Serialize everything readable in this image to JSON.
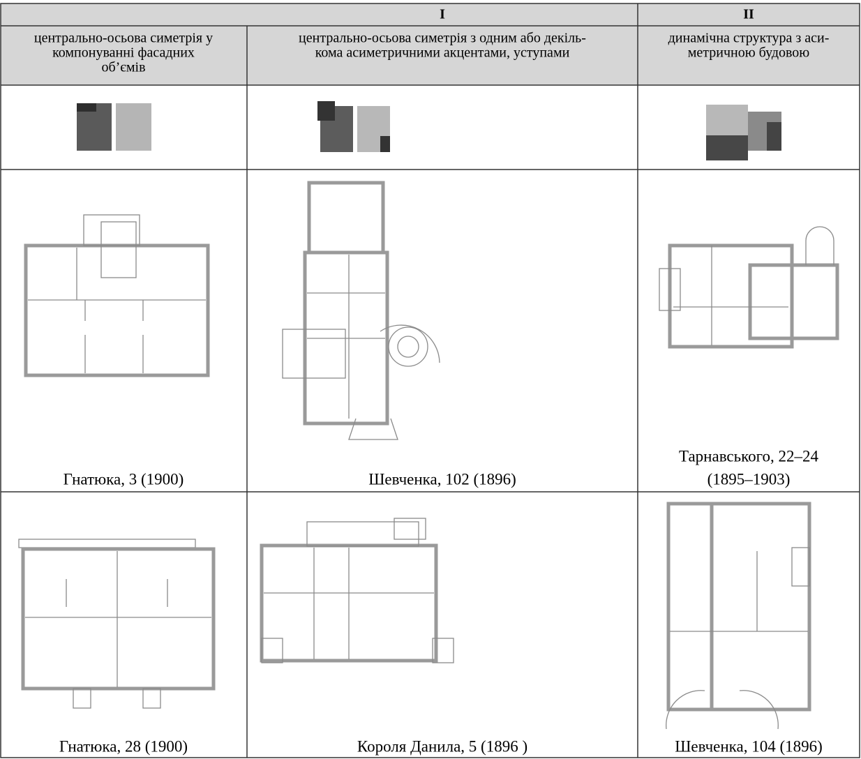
{
  "header": {
    "groups": [
      "I",
      "II"
    ],
    "types": [
      [
        "центрально-осьова симетрія у",
        "компонуванні фасадних",
        "об’ємів"
      ],
      [
        "центрально-осьова симетрія з одним або декіль-",
        "кома асиметричними акцентами, уступами"
      ],
      [
        "динамічна структура з аси-",
        "метричною будовою"
      ]
    ]
  },
  "table": {
    "rows": [
      [
        [
          "Гнатюка, 3 (1900)"
        ],
        [
          "Шевченка, 102 (1896)"
        ],
        [
          "Тарнавського, 22–24",
          "(1895–1903)"
        ]
      ],
      [
        [
          "Гнатюка, 28 (1900)"
        ],
        [
          "Короля Данила, 5 (1896 )"
        ],
        [
          "Шевченка, 104 (1896)"
        ]
      ]
    ]
  }
}
